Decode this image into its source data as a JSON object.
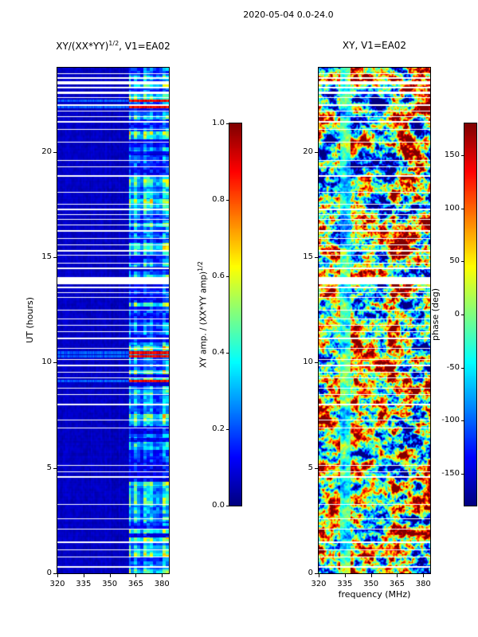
{
  "figure": {
    "title": "2020-05-04 0.0-24.0"
  },
  "chart_data": [
    {
      "type": "heatmap",
      "panel": "left",
      "title_pre": "XY/(XX*YY)",
      "title_sup": "1/2",
      "title_post": ", V1=EA02",
      "xlabel": "",
      "ylabel": "UT (hours)",
      "x_ticks": [
        "320",
        "335",
        "350",
        "365",
        "380"
      ],
      "y_ticks": [
        "0",
        "5",
        "10",
        "15",
        "20"
      ],
      "xlim": [
        320,
        384
      ],
      "ylim": [
        0,
        24
      ],
      "colormap": "jet",
      "value_range": [
        0,
        1
      ],
      "colorbar": {
        "label_pre": "XY amp. / (XX*YY amp)",
        "label_sup": "1/2",
        "ticks": [
          "0.0",
          "0.2",
          "0.4",
          "0.6",
          "0.8",
          "1.0"
        ],
        "range": [
          0,
          1
        ]
      },
      "description": "Normalized cross-hand amplitude spectrogram: near zero (dark blue) at most frequencies, enhanced band near 362-383 MHz with blocky cyan/green/yellow structure, a few orange-red rows near 22.3h and 10.4h, many white RFI-flagged rows"
    },
    {
      "type": "heatmap",
      "panel": "right",
      "title": "XY, V1=EA02",
      "xlabel": "frequency (MHz)",
      "ylabel": "",
      "x_ticks": [
        "320",
        "335",
        "350",
        "365",
        "380"
      ],
      "y_ticks": [
        "0",
        "5",
        "10",
        "15",
        "20"
      ],
      "xlim": [
        320,
        384
      ],
      "ylim": [
        0,
        24
      ],
      "colormap": "jet",
      "value_range": [
        -180,
        180
      ],
      "colorbar": {
        "label": "phase (deg)",
        "ticks": [
          "150",
          "100",
          "50",
          "0",
          "-50",
          "-100",
          "-150"
        ],
        "range": [
          -180,
          180
        ]
      },
      "description": "Cross-hand phase spectrogram: pseudo-random mosaic spanning the full -180 to +180 degree range, with a cyan stripe near 333-338 MHz and the same white flagged rows as the left panel"
    }
  ],
  "render_hints": {
    "seed": 20200504,
    "band_mhz": [
      361,
      384
    ],
    "hot_rows_hours": [
      22.45,
      22.15,
      10.5,
      10.32,
      9.15
    ],
    "cyan_stripe_mhz": [
      332,
      338
    ],
    "gap_rows": [
      [
        0.35,
        2
      ],
      [
        0.8,
        1
      ],
      [
        1.15,
        1
      ],
      [
        1.5,
        2
      ],
      [
        2.1,
        1
      ],
      [
        2.6,
        1
      ],
      [
        3.3,
        1
      ],
      [
        4.6,
        2
      ],
      [
        4.85,
        1
      ],
      [
        5.15,
        1
      ],
      [
        6.9,
        1
      ],
      [
        7.3,
        1
      ],
      [
        8.05,
        2
      ],
      [
        8.5,
        1
      ],
      [
        8.8,
        1
      ],
      [
        9.3,
        1
      ],
      [
        9.55,
        1
      ],
      [
        9.9,
        2
      ],
      [
        10.15,
        1
      ],
      [
        10.7,
        1
      ],
      [
        11.2,
        2
      ],
      [
        11.5,
        1
      ],
      [
        11.8,
        1
      ],
      [
        12.1,
        1
      ],
      [
        12.5,
        1
      ],
      [
        13.1,
        1
      ],
      [
        13.35,
        1
      ],
      [
        13.6,
        2
      ],
      [
        14.05,
        9
      ],
      [
        14.5,
        2
      ],
      [
        14.75,
        1
      ],
      [
        15.1,
        1
      ],
      [
        15.35,
        2
      ],
      [
        15.6,
        1
      ],
      [
        15.9,
        1
      ],
      [
        16.3,
        2
      ],
      [
        16.55,
        1
      ],
      [
        16.8,
        1
      ],
      [
        17.05,
        1
      ],
      [
        17.3,
        2
      ],
      [
        17.55,
        1
      ],
      [
        18.1,
        1
      ],
      [
        18.9,
        2
      ],
      [
        19.3,
        1
      ],
      [
        19.6,
        1
      ],
      [
        20.5,
        1
      ],
      [
        21.1,
        1
      ],
      [
        21.45,
        2
      ],
      [
        21.7,
        1
      ],
      [
        21.95,
        1
      ],
      [
        22.25,
        2
      ],
      [
        22.6,
        1
      ],
      [
        22.85,
        3
      ],
      [
        23.1,
        2
      ],
      [
        23.35,
        4
      ],
      [
        23.55,
        2
      ],
      [
        23.75,
        1
      ]
    ]
  }
}
